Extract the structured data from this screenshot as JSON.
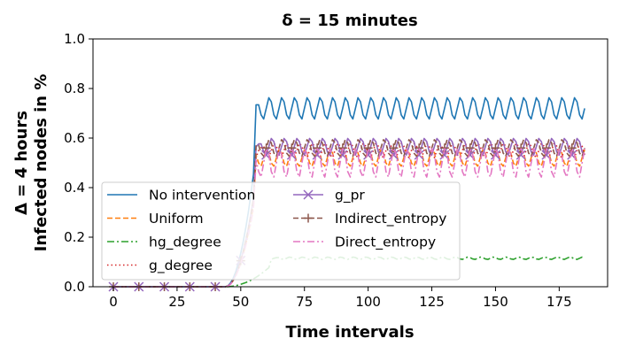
{
  "chart_data": {
    "type": "line",
    "title": "δ = 15 minutes",
    "xlabel": "Time intervals",
    "ylabel_line1": "Δ = 4 hours",
    "ylabel_line2": "Infected nodes in %",
    "xlim": [
      -8,
      194
    ],
    "ylim": [
      0.0,
      1.0
    ],
    "xticks": [
      "0",
      "25",
      "50",
      "75",
      "100",
      "125",
      "150",
      "175"
    ],
    "yticks": [
      "0.0",
      "0.2",
      "0.4",
      "0.6",
      "0.8",
      "1.0"
    ],
    "grid": false,
    "legend": {
      "placement": "lower-left",
      "columns": 2
    },
    "x_range": [
      0,
      185
    ],
    "series": [
      {
        "name": "No intervention",
        "color": "#1f77b4",
        "style": "solid",
        "marker": "none",
        "onset": 56,
        "plateau": 0.72,
        "amplitude": 0.045,
        "period": 5
      },
      {
        "name": "Uniform",
        "color": "#ff7f0e",
        "style": "dashed",
        "marker": "none",
        "onset": 56,
        "plateau": 0.52,
        "amplitude": 0.035,
        "period": 5
      },
      {
        "name": "hg_degree",
        "color": "#2ca02c",
        "style": "dashdot",
        "marker": "none",
        "onset": 62,
        "plateau": 0.115,
        "amplitude": 0.005,
        "period": 5
      },
      {
        "name": "g_degree",
        "color": "#d62728",
        "style": "dotted",
        "marker": "none",
        "onset": 56,
        "plateau": 0.55,
        "amplitude": 0.03,
        "period": 5
      },
      {
        "name": "g_pr",
        "color": "#9467bd",
        "style": "solid",
        "marker": "x",
        "onset": 56,
        "plateau": 0.565,
        "amplitude": 0.035,
        "period": 5
      },
      {
        "name": "Indirect_entropy",
        "color": "#8c564b",
        "style": "dashed",
        "marker": "+",
        "onset": 56,
        "plateau": 0.56,
        "amplitude": 0.035,
        "period": 5
      },
      {
        "name": "Direct_entropy",
        "color": "#e377c2",
        "style": "dashdot",
        "marker": "none",
        "onset": 56,
        "plateau": 0.5,
        "amplitude": 0.06,
        "period": 5
      }
    ]
  }
}
